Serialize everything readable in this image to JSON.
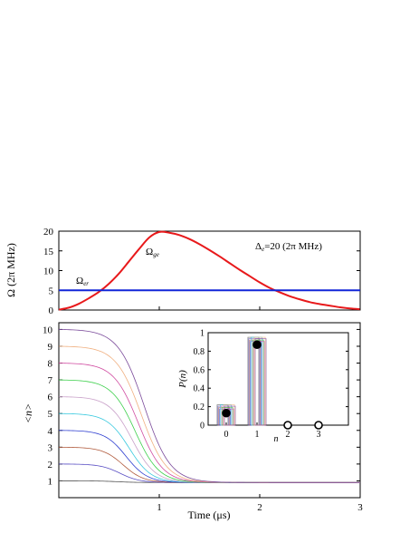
{
  "chart_data": [
    {
      "type": "line",
      "panel": "top",
      "ylabel": "Ω (2π MHz)",
      "xlim": [
        0,
        3
      ],
      "ylim": [
        0,
        20
      ],
      "yticks": [
        0,
        5,
        10,
        15,
        20
      ],
      "annotation": {
        "text": "Δ",
        "sub": "e",
        "rest": "=20 (2π MHz)"
      },
      "series": [
        {
          "name": "Ω",
          "sub": "ge",
          "color": "#e8191b",
          "x": [
            0,
            0.1,
            0.2,
            0.3,
            0.4,
            0.5,
            0.6,
            0.7,
            0.8,
            0.9,
            1.0,
            1.1,
            1.2,
            1.3,
            1.4,
            1.5,
            1.6,
            1.7,
            1.8,
            1.9,
            2.0,
            2.1,
            2.2,
            2.3,
            2.4,
            2.5,
            2.6,
            2.7,
            2.8,
            2.9,
            3.0
          ],
          "y": [
            0.1,
            0.6,
            1.6,
            3.0,
            4.6,
            6.7,
            9.3,
            12.4,
            15.5,
            18.4,
            19.8,
            19.6,
            19.0,
            18.0,
            16.7,
            15.2,
            13.6,
            11.9,
            10.2,
            8.6,
            7.0,
            5.6,
            4.5,
            3.5,
            2.7,
            2.0,
            1.5,
            1.1,
            0.7,
            0.4,
            0.2
          ]
        },
        {
          "name": "Ω",
          "sub": "er",
          "color": "#1226d8",
          "x": [
            0,
            3
          ],
          "y": [
            5,
            5
          ]
        }
      ]
    },
    {
      "type": "line",
      "panel": "bottom",
      "xlabel": "Time (μs)",
      "ylabel": "<n>",
      "xlim": [
        0,
        3
      ],
      "ylim": [
        0,
        10.4
      ],
      "xticks": [
        1,
        2,
        3
      ],
      "yticks": [
        1,
        2,
        3,
        4,
        5,
        6,
        7,
        8,
        9,
        10
      ],
      "series": [
        {
          "n0": 1,
          "color": "#555555"
        },
        {
          "n0": 2,
          "color": "#5a4fc4"
        },
        {
          "n0": 3,
          "color": "#b05a3c"
        },
        {
          "n0": 4,
          "color": "#2f3fd0"
        },
        {
          "n0": 5,
          "color": "#35c8de"
        },
        {
          "n0": 6,
          "color": "#c9a0c9"
        },
        {
          "n0": 7,
          "color": "#3bcf4a"
        },
        {
          "n0": 8,
          "color": "#d04aa0"
        },
        {
          "n0": 9,
          "color": "#f0b080"
        },
        {
          "n0": 10,
          "color": "#7a4a9a"
        }
      ],
      "final_value": 0.9
    },
    {
      "type": "bar",
      "panel": "inset",
      "xlabel": "n",
      "ylabel": "P(n)",
      "categories": [
        "0",
        "1",
        "2",
        "3"
      ],
      "xticks": [
        0,
        1,
        2,
        3
      ],
      "yticks": [
        0,
        0.2,
        0.4,
        0.6,
        0.8,
        1
      ],
      "ylim": [
        0,
        1
      ],
      "values": [
        0.13,
        0.87,
        0.0,
        0.0
      ],
      "bar_tops": [
        0.22,
        0.95,
        0.0,
        0.0
      ]
    }
  ]
}
